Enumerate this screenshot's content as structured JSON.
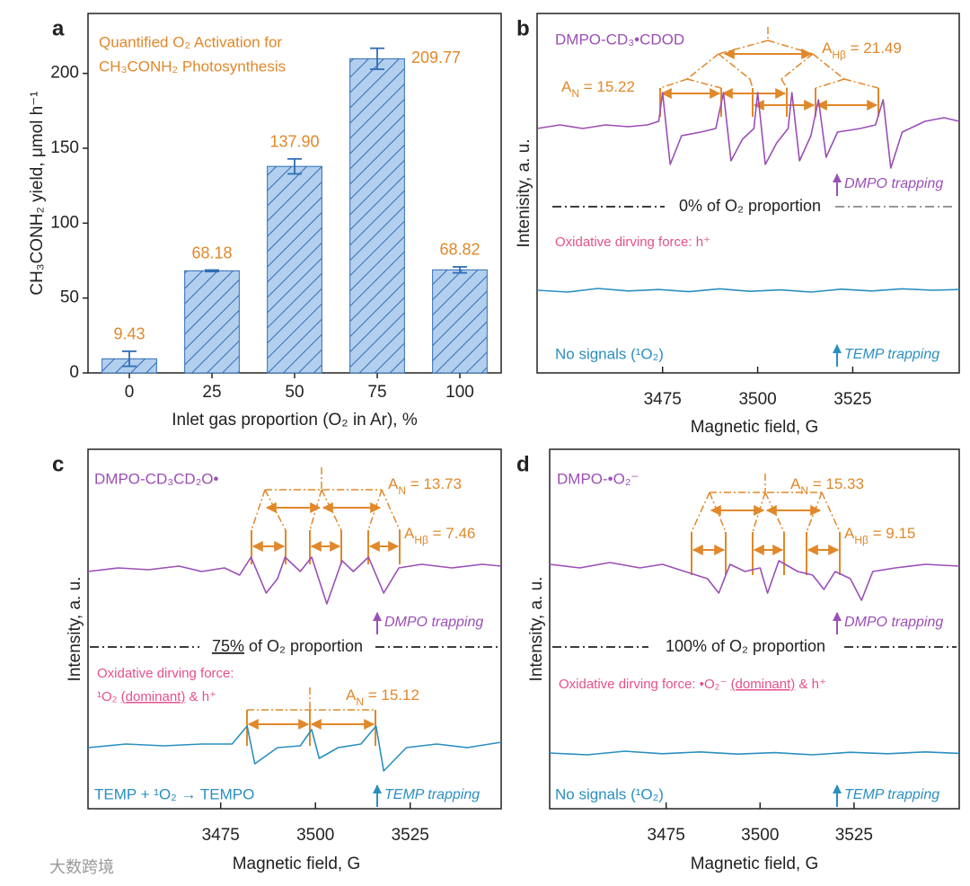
{
  "chart_data": [
    {
      "type": "bar",
      "title": [
        "Quantified O₂ Activation for",
        "CH₃CONH₂ Photosynthesis"
      ],
      "categories": [
        "0",
        "25",
        "50",
        "75",
        "100"
      ],
      "values": [
        9.43,
        68.18,
        137.9,
        209.77,
        68.82
      ],
      "value_labels": [
        "9.43",
        "68.18",
        "137.90",
        "209.77",
        "68.82"
      ],
      "errors": [
        5,
        0.5,
        5,
        7,
        2
      ],
      "color": "#b3cfee",
      "edgecolor": "#2f6db5",
      "ylim": [
        0,
        240
      ],
      "yticks": [
        0,
        50,
        100,
        150,
        200
      ],
      "xlabel": "Inlet gas proportion (O₂ in Ar), %",
      "ylabel": "CH₃CONH₂ yield, μmol h⁻¹"
    },
    {
      "type": "line",
      "xlim": [
        3442,
        3553
      ],
      "xticks": [
        3475,
        3500,
        3525
      ],
      "ylim": [
        0,
        100
      ],
      "xlabel": "Magnetic field, G",
      "ylabel": "Intenisity, a. u.",
      "series": [
        {
          "name": "DMPO-CD₃•CDOD",
          "color": "#9b4fb5",
          "x": [
            3442,
            3448,
            3454,
            3460,
            3466,
            3471,
            3474,
            3475,
            3477,
            3480,
            3485,
            3489,
            3491,
            3493,
            3496,
            3499,
            3500,
            3502,
            3505,
            3508,
            3509,
            3511,
            3514,
            3516,
            3518,
            3521,
            3527,
            3531,
            3533,
            3535,
            3538,
            3544,
            3549,
            3553
          ],
          "values": [
            68,
            69,
            68,
            69,
            68.5,
            69,
            70,
            78,
            58,
            66,
            67,
            68,
            78,
            59,
            65,
            68,
            78,
            58,
            64,
            68,
            78,
            59,
            66,
            76,
            60,
            67,
            68,
            69,
            76,
            57,
            67,
            70,
            71,
            70
          ]
        },
        {
          "name": "No signals (¹O₂)",
          "color": "#2a8fc0",
          "x": [
            3442,
            3450,
            3458,
            3466,
            3474,
            3482,
            3490,
            3498,
            3506,
            3514,
            3522,
            3530,
            3538,
            3546,
            3553
          ],
          "values": [
            23,
            22.5,
            23.5,
            22.8,
            23.2,
            22.6,
            23.4,
            22.7,
            23.1,
            22.5,
            23.3,
            22.8,
            23.4,
            23,
            23.2
          ]
        }
      ],
      "annotations": [
        {
          "parts": [
            "A",
            "N",
            " = 15.22"
          ]
        },
        {
          "parts": [
            "A",
            "Hβ",
            " = 21.49"
          ]
        }
      ],
      "trapping": [
        "DMPO trapping",
        "TEMP trapping"
      ],
      "separator": [
        "0% of O₂ proportion"
      ],
      "force": [
        [
          "Oxidative dirving force: h⁺"
        ]
      ]
    },
    {
      "type": "line",
      "xlim": [
        3440,
        3549
      ],
      "xticks": [
        3475,
        3500,
        3525
      ],
      "ylim": [
        0,
        100
      ],
      "xlabel": "Magnetic field, G",
      "ylabel": "Intensity, a. u.",
      "series": [
        {
          "name": "DMPO-CD₃CD₂O•",
          "color": "#9b4fb5",
          "x": [
            3440,
            3448,
            3456,
            3464,
            3470,
            3476,
            3480,
            3483,
            3487,
            3490,
            3492,
            3496,
            3499,
            3503,
            3507,
            3510,
            3514,
            3518,
            3522,
            3528,
            3536,
            3544,
            3549
          ],
          "values": [
            66,
            67,
            66.5,
            67.5,
            66,
            67,
            65,
            70,
            60,
            64,
            70,
            66,
            70,
            57,
            69,
            66,
            70,
            60,
            67,
            68,
            67,
            68,
            67.5
          ]
        },
        {
          "name": "TEMP + ¹O₂ → TEMPO",
          "color": "#2a8fc0",
          "x": [
            3440,
            3450,
            3460,
            3470,
            3478,
            3482,
            3484,
            3490,
            3496,
            3499,
            3501,
            3506,
            3512,
            3516,
            3518,
            3524,
            3532,
            3540,
            3549
          ],
          "values": [
            17,
            18,
            17.5,
            18,
            18,
            23,
            12.5,
            17,
            17.5,
            22,
            14,
            17,
            18,
            23,
            10.5,
            17,
            18,
            17,
            18.5
          ]
        }
      ],
      "annotations": [
        {
          "parts": [
            "A",
            "N",
            " = 13.73"
          ]
        },
        {
          "parts": [
            "A",
            "Hβ",
            " = 7.46"
          ]
        },
        {
          "parts": [
            "A",
            "N",
            " = 15.12"
          ]
        }
      ],
      "trapping": [
        "DMPO trapping",
        "TEMP trapping"
      ],
      "separator": [
        "75%",
        " of O₂ proportion"
      ],
      "force": [
        [
          "Oxidative dirving force:"
        ],
        [
          "¹O₂ ",
          "(dominant)",
          " & h⁺"
        ]
      ]
    },
    {
      "type": "line",
      "xlim": [
        3444,
        3553
      ],
      "xticks": [
        3475,
        3500,
        3525
      ],
      "ylim": [
        0,
        100
      ],
      "xlabel": "Magnetic field, G",
      "ylabel": "Intensity, a. u.",
      "series": [
        {
          "name": "DMPO-•O₂⁻",
          "color": "#9b4fb5",
          "x": [
            3444,
            3452,
            3460,
            3468,
            3474,
            3480,
            3486,
            3489,
            3492,
            3496,
            3500,
            3502,
            3505,
            3510,
            3514,
            3517,
            3520,
            3524,
            3527,
            3530,
            3536,
            3544,
            3553
          ],
          "values": [
            68,
            67,
            68.5,
            67,
            68,
            66,
            64,
            60,
            68,
            66,
            67,
            60,
            69,
            66,
            65,
            61,
            66,
            64,
            58,
            66,
            67,
            68,
            67.5
          ]
        },
        {
          "name": "No signals (¹O₂)",
          "color": "#2a8fc0",
          "x": [
            3444,
            3454,
            3464,
            3474,
            3484,
            3494,
            3504,
            3514,
            3524,
            3534,
            3544,
            3553
          ],
          "values": [
            15.5,
            15,
            16,
            15.3,
            15.8,
            15.2,
            15.6,
            15,
            15.7,
            15.3,
            15.8,
            15.4
          ]
        }
      ],
      "annotations": [
        {
          "parts": [
            "A",
            "N",
            " = 15.33"
          ]
        },
        {
          "parts": [
            "A",
            "Hβ",
            " = 9.15"
          ]
        }
      ],
      "trapping": [
        "DMPO trapping",
        "TEMP trapping"
      ],
      "separator": [
        "100% of O₂  proportion"
      ],
      "force": [
        [
          "Oxidative dirving force: •O₂⁻ ",
          "(dominant)",
          " & h⁺"
        ]
      ]
    }
  ],
  "panel_labels": [
    "a",
    "b",
    "c",
    "d"
  ],
  "watermark": "大数跨境"
}
